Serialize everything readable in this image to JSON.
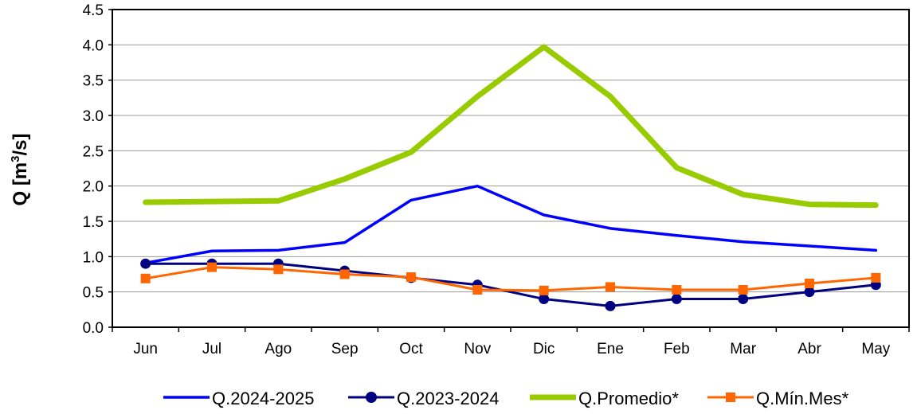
{
  "chart_data": {
    "type": "line",
    "categories": [
      "Jun",
      "Jul",
      "Ago",
      "Sep",
      "Oct",
      "Nov",
      "Dic",
      "Ene",
      "Feb",
      "Mar",
      "Abr",
      "May"
    ],
    "ylabel": "Q [m³/s]",
    "ylabel_parts": {
      "main": "Q [m",
      "sup": "3",
      "end": "/s]"
    },
    "ylim": [
      0,
      4.5
    ],
    "yticks": [
      "0.0",
      "0.5",
      "1.0",
      "1.5",
      "2.0",
      "2.5",
      "3.0",
      "3.5",
      "4.0",
      "4.5"
    ],
    "grid": true,
    "legend_position": "bottom",
    "series": [
      {
        "name": "Q.2024-2025",
        "color": "#0000FF",
        "marker": "none",
        "values": [
          0.91,
          1.08,
          1.09,
          1.2,
          1.8,
          2.0,
          1.59,
          1.4,
          1.3,
          1.21,
          1.15,
          1.09
        ]
      },
      {
        "name": "Q.2023-2024",
        "color": "#000080",
        "marker": "circle",
        "values": [
          0.9,
          0.9,
          0.9,
          0.8,
          0.7,
          0.6,
          0.4,
          0.3,
          0.4,
          0.4,
          0.5,
          0.6
        ]
      },
      {
        "name": "Q.Promedio*",
        "color": "#99CC00",
        "marker": "none",
        "values": [
          1.77,
          1.78,
          1.79,
          2.1,
          2.48,
          3.27,
          3.97,
          3.27,
          2.26,
          1.88,
          1.74,
          1.73
        ]
      },
      {
        "name": "Q.Mín.Mes*",
        "color": "#FF6600",
        "marker": "square",
        "values": [
          0.69,
          0.85,
          0.82,
          0.75,
          0.71,
          0.53,
          0.52,
          0.57,
          0.53,
          0.53,
          0.62,
          0.7
        ]
      }
    ]
  }
}
